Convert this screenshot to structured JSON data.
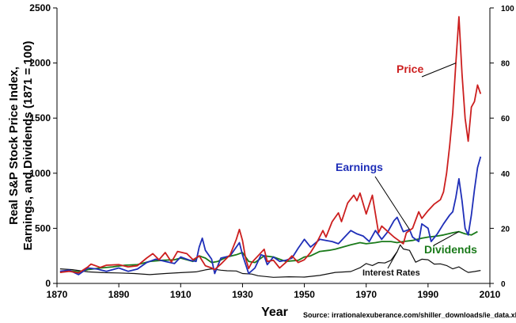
{
  "chart_data": {
    "type": "line",
    "xlabel": "Year",
    "ylabel_lines": [
      "Real S&P Stock Price Index,",
      "Earnings, and Dividends (1871 = 100)"
    ],
    "xlim": [
      1870,
      2010
    ],
    "ylim": [
      0,
      2500
    ],
    "y2lim": [
      0,
      100
    ],
    "x_ticks": [
      "1870",
      "1890",
      "1910",
      "1930",
      "1950",
      "1970",
      "1990",
      "2010"
    ],
    "y_ticks": [
      "0",
      "500",
      "1000",
      "1500",
      "2000",
      "2500"
    ],
    "y2_ticks": [
      "0",
      "20",
      "40",
      "60",
      "80",
      "100"
    ],
    "grid": false,
    "source": "Source: irrationalexuberance.com/shiller_downloads/ie_data.xls",
    "series": [
      {
        "name": "Price",
        "axis": "left",
        "color": "#cc1f1f",
        "points": [
          [
            1871,
            100
          ],
          [
            1874,
            110
          ],
          [
            1877,
            95
          ],
          [
            1880,
            150
          ],
          [
            1881,
            175
          ],
          [
            1884,
            145
          ],
          [
            1886,
            165
          ],
          [
            1890,
            170
          ],
          [
            1893,
            150
          ],
          [
            1896,
            160
          ],
          [
            1899,
            230
          ],
          [
            1901,
            270
          ],
          [
            1903,
            215
          ],
          [
            1905,
            280
          ],
          [
            1907,
            195
          ],
          [
            1909,
            290
          ],
          [
            1912,
            270
          ],
          [
            1914,
            215
          ],
          [
            1916,
            250
          ],
          [
            1918,
            160
          ],
          [
            1920,
            140
          ],
          [
            1921,
            125
          ],
          [
            1923,
            175
          ],
          [
            1926,
            260
          ],
          [
            1928,
            400
          ],
          [
            1929,
            490
          ],
          [
            1930,
            390
          ],
          [
            1931,
            230
          ],
          [
            1932,
            135
          ],
          [
            1933,
            190
          ],
          [
            1935,
            250
          ],
          [
            1937,
            310
          ],
          [
            1938,
            200
          ],
          [
            1940,
            210
          ],
          [
            1942,
            140
          ],
          [
            1944,
            190
          ],
          [
            1946,
            250
          ],
          [
            1948,
            190
          ],
          [
            1950,
            215
          ],
          [
            1952,
            280
          ],
          [
            1954,
            370
          ],
          [
            1956,
            480
          ],
          [
            1957,
            420
          ],
          [
            1959,
            560
          ],
          [
            1961,
            640
          ],
          [
            1962,
            560
          ],
          [
            1964,
            730
          ],
          [
            1966,
            800
          ],
          [
            1967,
            750
          ],
          [
            1968,
            820
          ],
          [
            1970,
            630
          ],
          [
            1972,
            800
          ],
          [
            1974,
            460
          ],
          [
            1975,
            520
          ],
          [
            1977,
            470
          ],
          [
            1979,
            420
          ],
          [
            1980,
            400
          ],
          [
            1982,
            360
          ],
          [
            1983,
            460
          ],
          [
            1985,
            500
          ],
          [
            1987,
            650
          ],
          [
            1988,
            590
          ],
          [
            1990,
            660
          ],
          [
            1992,
            720
          ],
          [
            1994,
            760
          ],
          [
            1995,
            830
          ],
          [
            1996,
            1000
          ],
          [
            1997,
            1250
          ],
          [
            1998,
            1550
          ],
          [
            1999,
            2000
          ],
          [
            2000,
            2420
          ],
          [
            2001,
            1900
          ],
          [
            2002,
            1500
          ],
          [
            2003,
            1290
          ],
          [
            2004,
            1600
          ],
          [
            2005,
            1650
          ],
          [
            2006,
            1800
          ],
          [
            2007,
            1720
          ]
        ]
      },
      {
        "name": "Earnings",
        "axis": "left",
        "color": "#1f2fb8",
        "points": [
          [
            1871,
            110
          ],
          [
            1874,
            120
          ],
          [
            1877,
            80
          ],
          [
            1880,
            140
          ],
          [
            1883,
            130
          ],
          [
            1886,
            110
          ],
          [
            1890,
            140
          ],
          [
            1893,
            110
          ],
          [
            1896,
            130
          ],
          [
            1899,
            190
          ],
          [
            1902,
            220
          ],
          [
            1905,
            200
          ],
          [
            1908,
            180
          ],
          [
            1910,
            240
          ],
          [
            1913,
            210
          ],
          [
            1915,
            200
          ],
          [
            1916,
            330
          ],
          [
            1917,
            410
          ],
          [
            1918,
            300
          ],
          [
            1920,
            220
          ],
          [
            1921,
            90
          ],
          [
            1923,
            230
          ],
          [
            1926,
            250
          ],
          [
            1929,
            370
          ],
          [
            1930,
            260
          ],
          [
            1932,
            90
          ],
          [
            1934,
            140
          ],
          [
            1936,
            260
          ],
          [
            1937,
            250
          ],
          [
            1938,
            170
          ],
          [
            1940,
            240
          ],
          [
            1942,
            200
          ],
          [
            1944,
            210
          ],
          [
            1946,
            230
          ],
          [
            1948,
            320
          ],
          [
            1950,
            400
          ],
          [
            1952,
            330
          ],
          [
            1955,
            400
          ],
          [
            1957,
            390
          ],
          [
            1959,
            380
          ],
          [
            1961,
            360
          ],
          [
            1963,
            420
          ],
          [
            1965,
            480
          ],
          [
            1967,
            450
          ],
          [
            1969,
            430
          ],
          [
            1971,
            380
          ],
          [
            1973,
            480
          ],
          [
            1975,
            400
          ],
          [
            1977,
            470
          ],
          [
            1979,
            570
          ],
          [
            1980,
            600
          ],
          [
            1982,
            470
          ],
          [
            1984,
            490
          ],
          [
            1985,
            420
          ],
          [
            1987,
            380
          ],
          [
            1988,
            540
          ],
          [
            1990,
            500
          ],
          [
            1991,
            380
          ],
          [
            1993,
            450
          ],
          [
            1995,
            540
          ],
          [
            1997,
            620
          ],
          [
            1998,
            650
          ],
          [
            1999,
            780
          ],
          [
            2000,
            950
          ],
          [
            2001,
            750
          ],
          [
            2002,
            500
          ],
          [
            2003,
            440
          ],
          [
            2004,
            620
          ],
          [
            2005,
            850
          ],
          [
            2006,
            1050
          ],
          [
            2007,
            1150
          ]
        ]
      },
      {
        "name": "Dividends",
        "axis": "left",
        "color": "#1a7a1a",
        "points": [
          [
            1871,
            100
          ],
          [
            1874,
            115
          ],
          [
            1877,
            105
          ],
          [
            1880,
            125
          ],
          [
            1884,
            140
          ],
          [
            1888,
            150
          ],
          [
            1892,
            165
          ],
          [
            1896,
            170
          ],
          [
            1900,
            200
          ],
          [
            1904,
            210
          ],
          [
            1908,
            215
          ],
          [
            1910,
            230
          ],
          [
            1914,
            200
          ],
          [
            1916,
            250
          ],
          [
            1918,
            230
          ],
          [
            1920,
            190
          ],
          [
            1922,
            200
          ],
          [
            1925,
            240
          ],
          [
            1928,
            260
          ],
          [
            1930,
            280
          ],
          [
            1932,
            200
          ],
          [
            1934,
            190
          ],
          [
            1937,
            250
          ],
          [
            1940,
            240
          ],
          [
            1944,
            200
          ],
          [
            1948,
            210
          ],
          [
            1950,
            240
          ],
          [
            1952,
            250
          ],
          [
            1955,
            290
          ],
          [
            1958,
            300
          ],
          [
            1960,
            310
          ],
          [
            1965,
            350
          ],
          [
            1968,
            370
          ],
          [
            1970,
            360
          ],
          [
            1973,
            370
          ],
          [
            1975,
            380
          ],
          [
            1978,
            380
          ],
          [
            1980,
            370
          ],
          [
            1982,
            380
          ],
          [
            1985,
            390
          ],
          [
            1988,
            410
          ],
          [
            1990,
            420
          ],
          [
            1993,
            430
          ],
          [
            1995,
            440
          ],
          [
            1998,
            460
          ],
          [
            2000,
            470
          ],
          [
            2002,
            450
          ],
          [
            2004,
            440
          ],
          [
            2006,
            470
          ]
        ]
      },
      {
        "name": "Interest Rates",
        "axis": "right",
        "color": "#111111",
        "points": [
          [
            1871,
            5.3
          ],
          [
            1875,
            5.0
          ],
          [
            1880,
            4.2
          ],
          [
            1885,
            3.9
          ],
          [
            1890,
            3.8
          ],
          [
            1895,
            3.6
          ],
          [
            1900,
            3.2
          ],
          [
            1905,
            3.6
          ],
          [
            1910,
            3.9
          ],
          [
            1915,
            4.2
          ],
          [
            1918,
            4.9
          ],
          [
            1920,
            5.3
          ],
          [
            1923,
            4.8
          ],
          [
            1925,
            4.6
          ],
          [
            1928,
            4.5
          ],
          [
            1930,
            3.6
          ],
          [
            1933,
            3.4
          ],
          [
            1935,
            2.8
          ],
          [
            1940,
            2.2
          ],
          [
            1945,
            2.4
          ],
          [
            1950,
            2.3
          ],
          [
            1955,
            2.9
          ],
          [
            1960,
            4.0
          ],
          [
            1965,
            4.3
          ],
          [
            1968,
            5.7
          ],
          [
            1970,
            7.2
          ],
          [
            1972,
            6.5
          ],
          [
            1974,
            7.6
          ],
          [
            1976,
            7.4
          ],
          [
            1978,
            8.4
          ],
          [
            1980,
            11.5
          ],
          [
            1981,
            14.0
          ],
          [
            1982,
            12.5
          ],
          [
            1984,
            12.0
          ],
          [
            1986,
            7.7
          ],
          [
            1988,
            8.8
          ],
          [
            1990,
            8.6
          ],
          [
            1992,
            7.0
          ],
          [
            1994,
            7.1
          ],
          [
            1996,
            6.5
          ],
          [
            1998,
            5.3
          ],
          [
            2000,
            6.0
          ],
          [
            2002,
            4.6
          ],
          [
            2003,
            4.0
          ],
          [
            2005,
            4.3
          ],
          [
            2007,
            4.7
          ]
        ]
      }
    ],
    "annotations": [
      {
        "text": "Price",
        "series": "Price",
        "color": "#cc1f1f"
      },
      {
        "text": "Earnings",
        "series": "Earnings",
        "color": "#1f2fb8"
      },
      {
        "text": "Dividends",
        "series": "Dividends",
        "color": "#1a7a1a"
      },
      {
        "text": "Interest Rates",
        "series": "Interest Rates",
        "color": "#111111"
      }
    ]
  }
}
